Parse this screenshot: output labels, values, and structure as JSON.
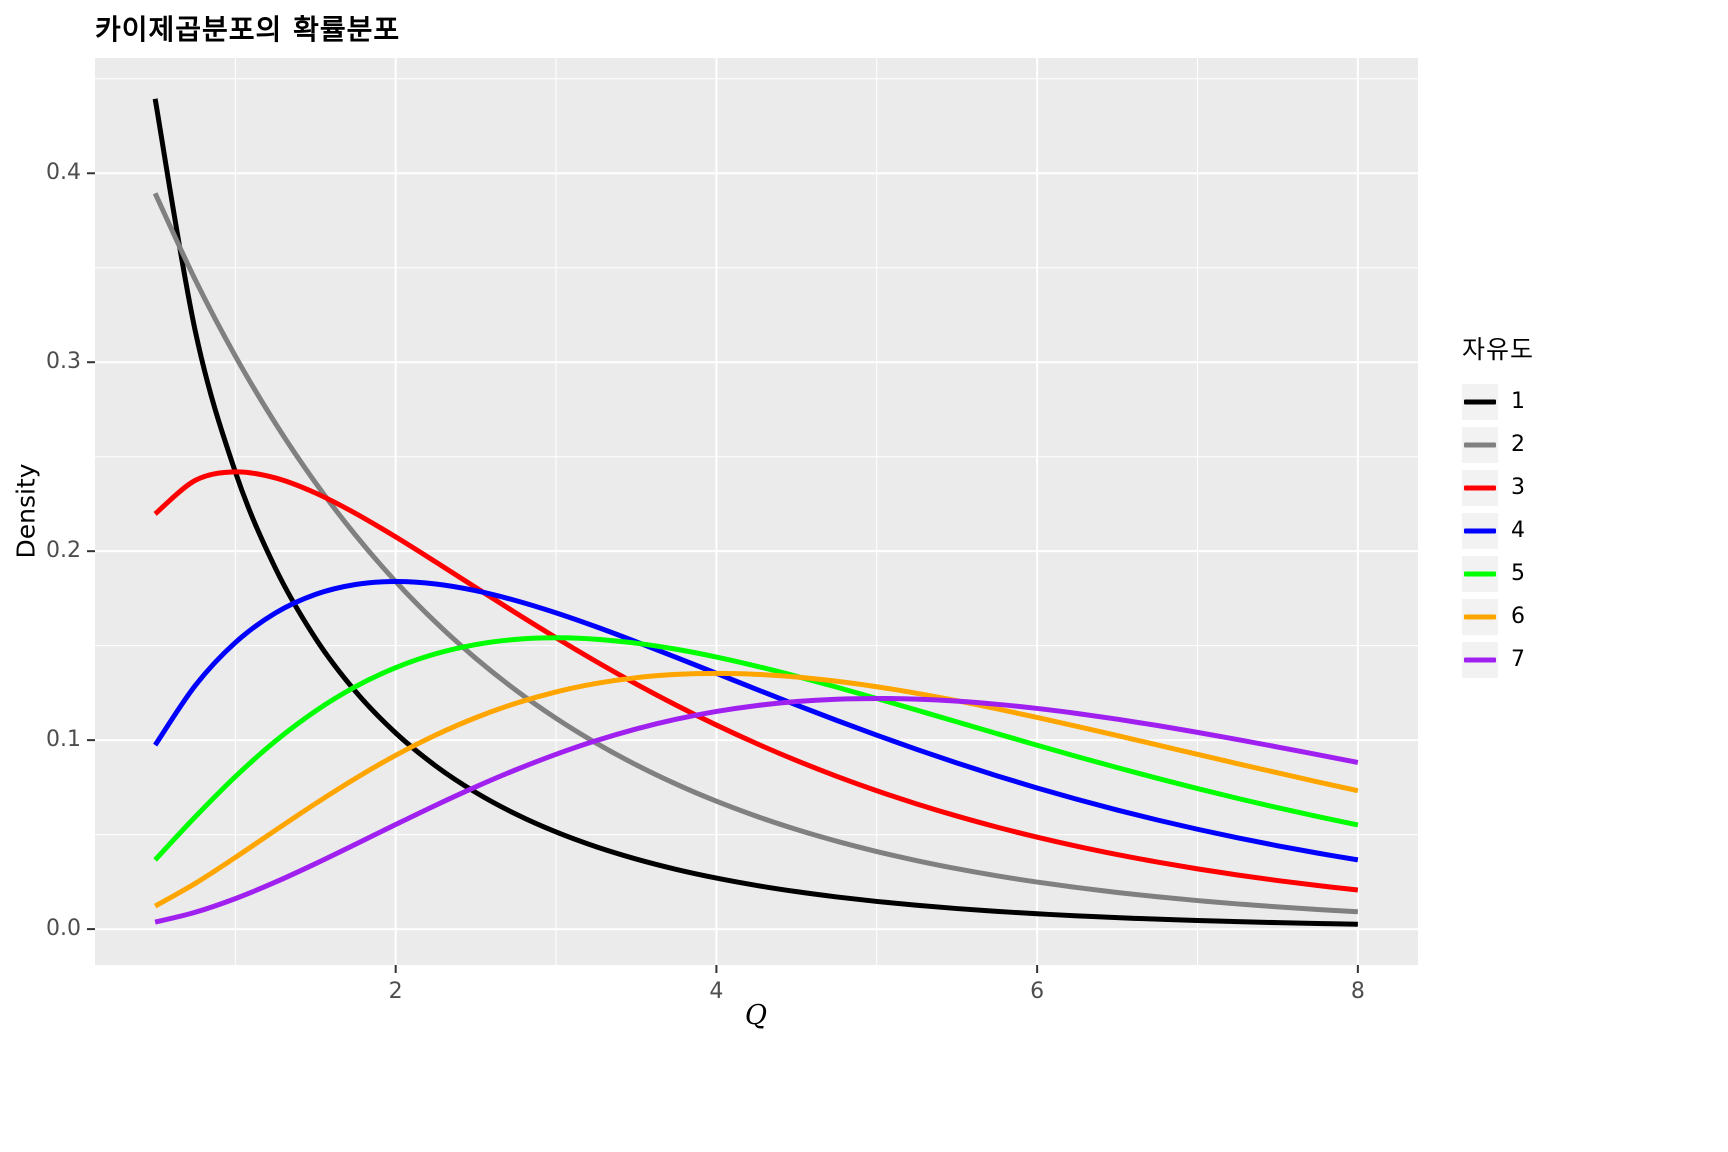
{
  "chart_data": {
    "type": "line",
    "title": "카이제곱분포의 확률분포",
    "xlabel": "Q",
    "ylabel": "Density",
    "legend_title": "자유도",
    "legend_position": "right",
    "panel_background": "#EBEBEB",
    "grid_color": "#FFFFFF",
    "tick_color": "#333333",
    "xlim": [
      0.125,
      8.375
    ],
    "ylim": [
      -0.019,
      0.461
    ],
    "x_major_ticks": [
      2,
      4,
      6,
      8
    ],
    "x_tick_labels": [
      "2",
      "4",
      "6",
      "8"
    ],
    "x_minor_ticks": [
      1,
      3,
      5,
      7
    ],
    "y_major_ticks": [
      0.0,
      0.1,
      0.2,
      0.3,
      0.4
    ],
    "y_tick_labels": [
      "0.0",
      "0.1",
      "0.2",
      "0.3",
      "0.4"
    ],
    "y_minor_ticks": [
      0.05,
      0.15,
      0.25,
      0.35,
      0.45
    ],
    "x": [
      0.5,
      0.75,
      1,
      1.25,
      1.5,
      1.75,
      2,
      2.25,
      2.5,
      2.75,
      3,
      3.25,
      3.5,
      3.75,
      4,
      4.25,
      4.5,
      4.75,
      5,
      5.25,
      5.5,
      5.75,
      6,
      6.25,
      6.5,
      6.75,
      7,
      7.25,
      7.5,
      7.75,
      8
    ],
    "series": [
      {
        "name": "1",
        "color": "#000000",
        "values": [
          0.43939,
          0.31661,
          0.24197,
          0.19099,
          0.15387,
          0.12572,
          0.10378,
          0.08634,
          0.07229,
          0.06083,
          0.05139,
          0.04357,
          0.03706,
          0.03159,
          0.027,
          0.02311,
          0.01982,
          0.01703,
          0.01464,
          0.01261,
          0.01087,
          0.00939,
          0.00811,
          0.00701,
          0.00607,
          0.00525,
          0.00455,
          0.00395,
          0.00343,
          0.00297,
          0.00258
        ]
      },
      {
        "name": "2",
        "color": "#808080",
        "values": [
          0.3894,
          0.34364,
          0.30327,
          0.26763,
          0.23618,
          0.20843,
          0.18394,
          0.16233,
          0.14325,
          0.12642,
          0.11157,
          0.09846,
          0.08689,
          0.07668,
          0.06767,
          0.05972,
          0.0527,
          0.04651,
          0.04104,
          0.03622,
          0.03196,
          0.02821,
          0.02489,
          0.02197,
          0.01939,
          0.01711,
          0.0151,
          0.01332,
          0.01176,
          0.01038,
          0.00916
        ]
      },
      {
        "name": "3",
        "color": "#FF0000",
        "values": [
          0.21969,
          0.23746,
          0.24197,
          0.23875,
          0.2308,
          0.22,
          0.20756,
          0.19428,
          0.18072,
          0.16727,
          0.15418,
          0.14162,
          0.12969,
          0.11847,
          0.10798,
          0.09822,
          0.0892,
          0.08087,
          0.07322,
          0.06622,
          0.05981,
          0.05397,
          0.04865,
          0.04382,
          0.03944,
          0.03547,
          0.03188,
          0.02863,
          0.02569,
          0.02305,
          0.02067
        ]
      },
      {
        "name": "4",
        "color": "#0000FF",
        "values": [
          0.09735,
          0.12887,
          0.15163,
          0.16727,
          0.17714,
          0.18238,
          0.18394,
          0.18262,
          0.17907,
          0.17383,
          0.16735,
          0.15999,
          0.15205,
          0.14377,
          0.13534,
          0.1269,
          0.11857,
          0.11046,
          0.10261,
          0.09508,
          0.0879,
          0.0811,
          0.07468,
          0.06865,
          0.06301,
          0.05774,
          0.05284,
          0.0483,
          0.0441,
          0.04021,
          0.03663
        ]
      },
      {
        "name": "5",
        "color": "#00FF00",
        "values": [
          0.03662,
          0.05937,
          0.08066,
          0.09948,
          0.1154,
          0.12834,
          0.13837,
          0.14571,
          0.1506,
          0.15333,
          0.15418,
          0.15342,
          0.15131,
          0.14809,
          0.14398,
          0.13916,
          0.1338,
          0.12805,
          0.12204,
          0.11588,
          0.10966,
          0.10344,
          0.0973,
          0.09129,
          0.08545,
          0.0798,
          0.07437,
          0.06918,
          0.06424,
          0.05954,
          0.05511
        ]
      },
      {
        "name": "6",
        "color": "#FFA500",
        "values": [
          0.01217,
          0.02416,
          0.03791,
          0.05227,
          0.06643,
          0.07979,
          0.09197,
          0.10272,
          0.11192,
          0.11951,
          0.12551,
          0.12999,
          0.13305,
          0.13478,
          0.13534,
          0.13483,
          0.1334,
          0.13116,
          0.12826,
          0.12479,
          0.12086,
          0.11658,
          0.11202,
          0.10727,
          0.10239,
          0.09744,
          0.09248,
          0.08755,
          0.08268,
          0.07791,
          0.07326
        ]
      },
      {
        "name": "7",
        "color": "#A020F0",
        "values": [
          0.00366,
          0.0089,
          0.01613,
          0.02487,
          0.03462,
          0.04492,
          0.05535,
          0.06557,
          0.0753,
          0.08433,
          0.09251,
          0.09972,
          0.10592,
          0.11107,
          0.11518,
          0.11828,
          0.12042,
          0.12165,
          0.12204,
          0.12169,
          0.12062,
          0.11896,
          0.11677,
          0.11412,
          0.11108,
          0.10773,
          0.10412,
          0.10031,
          0.09636,
          0.09229,
          0.08818
        ]
      }
    ]
  }
}
